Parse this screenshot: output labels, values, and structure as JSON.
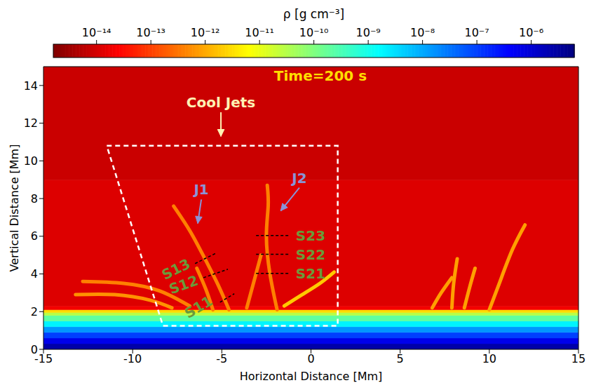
{
  "chart_data": {
    "type": "heatmap",
    "xlabel": "Horizontal Distance [Mm]",
    "ylabel": "Vertical Distance [Mm]",
    "xlim": [
      -15,
      15
    ],
    "xticks": [
      -15,
      -10,
      -5,
      0,
      5,
      10,
      15
    ],
    "ylim": [
      0,
      15
    ],
    "yticks": [
      0,
      2,
      4,
      6,
      8,
      10,
      12,
      14
    ],
    "colorbar": {
      "label": "ρ [g cm⁻³]",
      "log": true,
      "range": [
        1.6e-15,
        6.2e-06
      ],
      "ticks": [
        {
          "value": 1e-14,
          "label": "10⁻¹⁴"
        },
        {
          "value": 1e-13,
          "label": "10⁻¹³"
        },
        {
          "value": 1e-12,
          "label": "10⁻¹²"
        },
        {
          "value": 1e-11,
          "label": "10⁻¹¹"
        },
        {
          "value": 1e-10,
          "label": "10⁻¹⁰"
        },
        {
          "value": 1e-09,
          "label": "10⁻⁹"
        },
        {
          "value": 1e-08,
          "label": "10⁻⁸"
        },
        {
          "value": 1e-07,
          "label": "10⁻⁷"
        },
        {
          "value": 1e-06,
          "label": "10⁻⁶"
        }
      ]
    },
    "cells": {
      "y_edges": [
        0,
        0.3,
        0.6,
        0.9,
        1.2,
        1.5,
        1.8,
        1.95,
        2.1,
        2.3,
        9,
        15
      ],
      "density": [
        2.5e-06,
        6e-07,
        1e-07,
        1.5e-08,
        2e-09,
        2e-10,
        3e-11,
        3e-12,
        2e-14,
        1.2e-14,
        8e-15
      ]
    },
    "jets": [
      {
        "x": [
          -4.6,
          -5.2,
          -6.0,
          -6.8,
          -7.7
        ],
        "y": [
          2.1,
          3.4,
          4.9,
          6.3,
          7.6
        ],
        "density": 4e-13
      },
      {
        "x": [
          -5.5,
          -5.9,
          -6.4
        ],
        "y": [
          2.1,
          3.2,
          4.3
        ],
        "density": 4e-13
      },
      {
        "x": [
          -12.8,
          -10.5,
          -8.5,
          -6.8
        ],
        "y": [
          3.6,
          3.5,
          3.1,
          2.3
        ],
        "density": 4e-13
      },
      {
        "x": [
          -13.2,
          -11,
          -9,
          -7.8
        ],
        "y": [
          2.9,
          2.9,
          2.6,
          2.2
        ],
        "density": 6e-13
      },
      {
        "x": [
          -1.9,
          -2.3,
          -2.5,
          -2.4,
          -2.45
        ],
        "y": [
          2.1,
          4.0,
          6.0,
          7.6,
          8.7
        ],
        "density": 4e-13
      },
      {
        "x": [
          -3.6,
          -3.2,
          -2.8
        ],
        "y": [
          2.2,
          3.6,
          5.0
        ],
        "density": 4e-13
      },
      {
        "x": [
          -1.5,
          -0.5,
          0.5,
          1.3
        ],
        "y": [
          2.3,
          2.9,
          3.5,
          4.1
        ],
        "density": 2e-12
      },
      {
        "x": [
          6.8,
          7.3,
          7.9
        ],
        "y": [
          2.2,
          3.0,
          3.8
        ],
        "density": 8e-13
      },
      {
        "x": [
          7.9,
          8.0,
          8.2
        ],
        "y": [
          2.2,
          3.5,
          4.8
        ],
        "density": 8e-13
      },
      {
        "x": [
          8.6,
          8.9,
          9.2
        ],
        "y": [
          2.2,
          3.3,
          4.3
        ],
        "density": 8e-13
      },
      {
        "x": [
          10.0,
          10.6,
          11.3,
          12.0
        ],
        "y": [
          2.1,
          3.6,
          5.3,
          6.6
        ],
        "density": 8e-13
      }
    ],
    "box": {
      "x": [
        -11.45,
        1.5,
        1.5,
        -8.3,
        -11.45
      ],
      "y": [
        10.8,
        10.8,
        1.25,
        1.25,
        10.8
      ],
      "color": "#ffffff",
      "line_style": "dashed"
    },
    "slices": [
      {
        "label": "S11",
        "x": [
          -5.1,
          -4.3
        ],
        "y": [
          2.5,
          2.95
        ],
        "label_at": [
          -6.31,
          2.24
        ],
        "color": "#6b9a3a"
      },
      {
        "label": "S12",
        "x": [
          -6.03,
          -4.66
        ],
        "y": [
          3.8,
          4.25
        ],
        "label_at": [
          -7.14,
          3.43
        ],
        "color": "#6b9a3a"
      },
      {
        "label": "S13",
        "x": [
          -6.5,
          -5.33
        ],
        "y": [
          4.55,
          5.1
        ],
        "label_at": [
          -7.57,
          4.25
        ],
        "color": "#6b9a3a"
      },
      {
        "label": "S21",
        "x": [
          -3.08,
          -1.2
        ],
        "y": [
          4.03,
          4.03
        ],
        "label_at": [
          -0.02,
          4.03
        ],
        "color": "#6b9a3a"
      },
      {
        "label": "S22",
        "x": [
          -3.08,
          -1.2
        ],
        "y": [
          5.04,
          5.04
        ],
        "label_at": [
          -0.02,
          5.04
        ],
        "color": "#6b9a3a"
      },
      {
        "label": "S23",
        "x": [
          -3.08,
          -1.2
        ],
        "y": [
          6.04,
          6.04
        ],
        "label_at": [
          -0.02,
          6.04
        ],
        "color": "#6b9a3a"
      }
    ],
    "annotations": [
      {
        "text": "Time=200 s",
        "x": 0.53,
        "y": 14.5,
        "color": "#ffdd00"
      },
      {
        "text": "Cool Jets",
        "x": -5.05,
        "y": 13.1,
        "color": "#fff2b3",
        "arrow_to": [
          -5.05,
          11.3
        ]
      },
      {
        "text": "J1",
        "x": -6.15,
        "y": 8.47,
        "color": "#8a93d6",
        "arrow_to": [
          -6.35,
          6.68
        ]
      },
      {
        "text": "J2",
        "x": -0.65,
        "y": 9.1,
        "color": "#8a93d6",
        "arrow_to": [
          -1.7,
          7.35
        ]
      }
    ]
  }
}
